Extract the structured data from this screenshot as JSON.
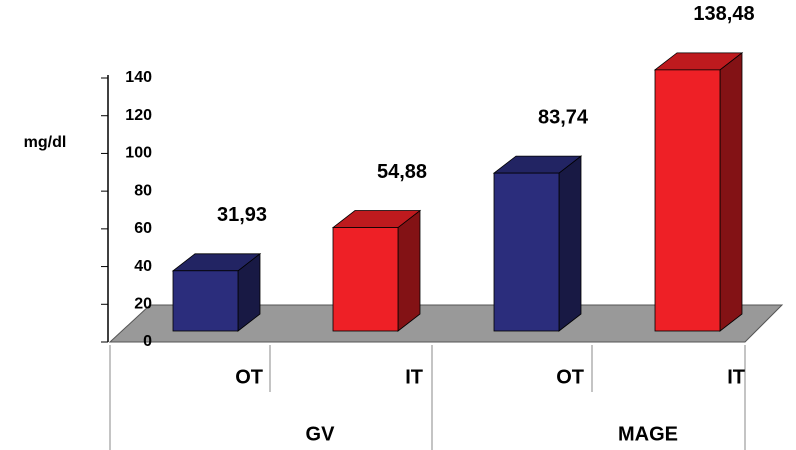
{
  "chart_data": {
    "type": "bar3d",
    "ylabel": "mg/dl",
    "categories": [
      "OT",
      "IT",
      "OT",
      "IT"
    ],
    "groups": [
      "GV",
      "MAGE"
    ],
    "values": [
      31.93,
      54.88,
      83.74,
      138.48
    ],
    "value_labels": [
      "31,93",
      "54,88",
      "83,74",
      "138,48"
    ],
    "colors": [
      "#2b2d7c",
      "#ee2026",
      "#2b2d7c",
      "#ee2026"
    ],
    "ylim": [
      0,
      140
    ],
    "yticks": [
      0,
      20,
      40,
      60,
      80,
      100,
      120,
      140
    ]
  }
}
